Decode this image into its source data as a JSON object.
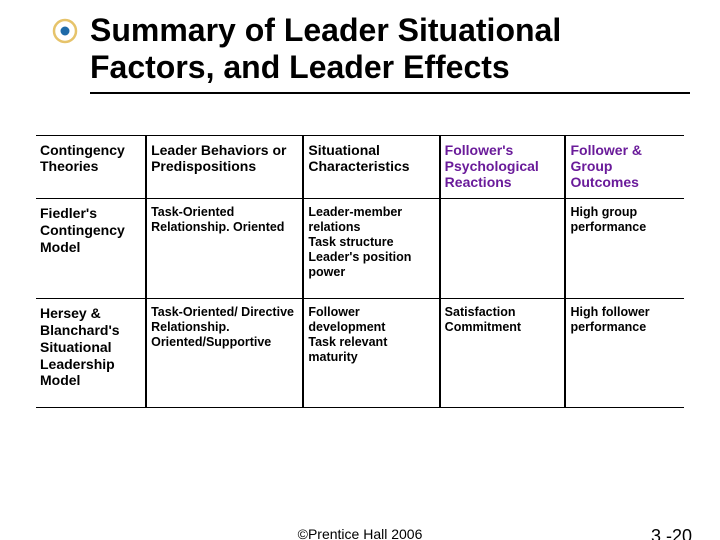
{
  "title": "Summary of Leader Situational Factors, and Leader Effects",
  "bullet": {
    "outer_color": "#e6c36a",
    "inner_color": "#1e6aa8"
  },
  "headers": {
    "c0": "Contingency Theories",
    "c1": "Leader Behaviors or Predispositions",
    "c2": "Situational Characteristics",
    "c3": "Follower's Psychological Reactions",
    "c4": "Follower & Group Outcomes"
  },
  "rows": [
    {
      "theory": "Fiedler's Contingency Model",
      "behaviors": "Task-Oriented Relationship. Oriented",
      "situational": "Leader-member relations\nTask structure\nLeader's position power",
      "reactions": "",
      "outcomes": "High group performance"
    },
    {
      "theory": "Hersey & Blanchard's Situational Leadership Model",
      "behaviors": "Task-Oriented/ Directive Relationship. Oriented/Supportive",
      "situational": "Follower development\nTask relevant maturity",
      "reactions": "Satisfaction Commitment",
      "outcomes": "High follower performance"
    }
  ],
  "footer": {
    "copyright": "©Prentice Hall 2006",
    "page": "3 -20"
  },
  "colors": {
    "header_purple": "#6a1b9a",
    "text": "#000000",
    "rule": "#000000"
  }
}
